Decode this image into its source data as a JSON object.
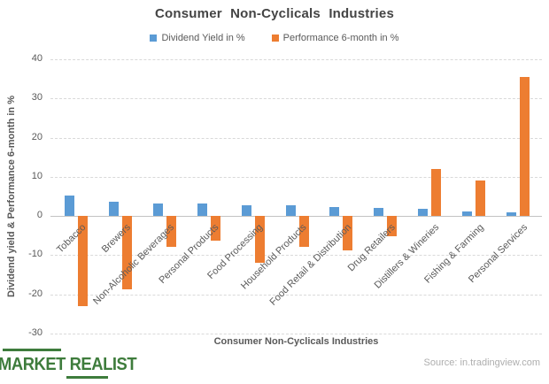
{
  "title": "Consumer Non-Cyclicals Industries",
  "legend": {
    "items": [
      {
        "label": "Dividend Yield in %"
      },
      {
        "label": "Performance 6-month in %"
      }
    ]
  },
  "chart_data": {
    "type": "bar",
    "title": "Consumer Non-Cyclicals Industries",
    "xlabel": "Consumer Non-Cyclicals Industries",
    "ylabel": "Dividend yield & Performance 6-month in %",
    "ylim": [
      -30,
      40
    ],
    "yticks": [
      40,
      30,
      20,
      10,
      0,
      -10,
      -20,
      -30
    ],
    "grid": "horizontal-dashed",
    "legend_position": "top",
    "categories": [
      "Tobacco",
      "Brewers",
      "Non-Alcoholic Beverages",
      "Personal Products",
      "Food Processing",
      "Household Products",
      "Food Retail & Distribution",
      "Drug Retailers",
      "Distillers & Wineries",
      "Fishing & Farming",
      "Personal Services"
    ],
    "series": [
      {
        "name": "Dividend Yield in %",
        "color": "#5B9BD5",
        "values": [
          5.3,
          3.7,
          3.2,
          3.1,
          2.7,
          2.7,
          2.2,
          2.1,
          1.8,
          1.1,
          0.9
        ]
      },
      {
        "name": "Performance 6-month in %",
        "color": "#ED7D31",
        "values": [
          -23,
          -18.6,
          -7.8,
          -6.3,
          -12,
          -7.9,
          -8.7,
          -5.1,
          12,
          9,
          35.5
        ]
      }
    ]
  },
  "footer": {
    "logo_word1": "MARKET",
    "logo_word2": "REALIST",
    "source": "Source: in.tradingview.com"
  },
  "colors": {
    "dividend_yield": "#5B9BD5",
    "performance": "#ED7D31",
    "text_gray": "#595959",
    "gridline": "#D9D9D9",
    "logo_green": "#3E7C3C",
    "source_gray": "#AEAEAE"
  }
}
